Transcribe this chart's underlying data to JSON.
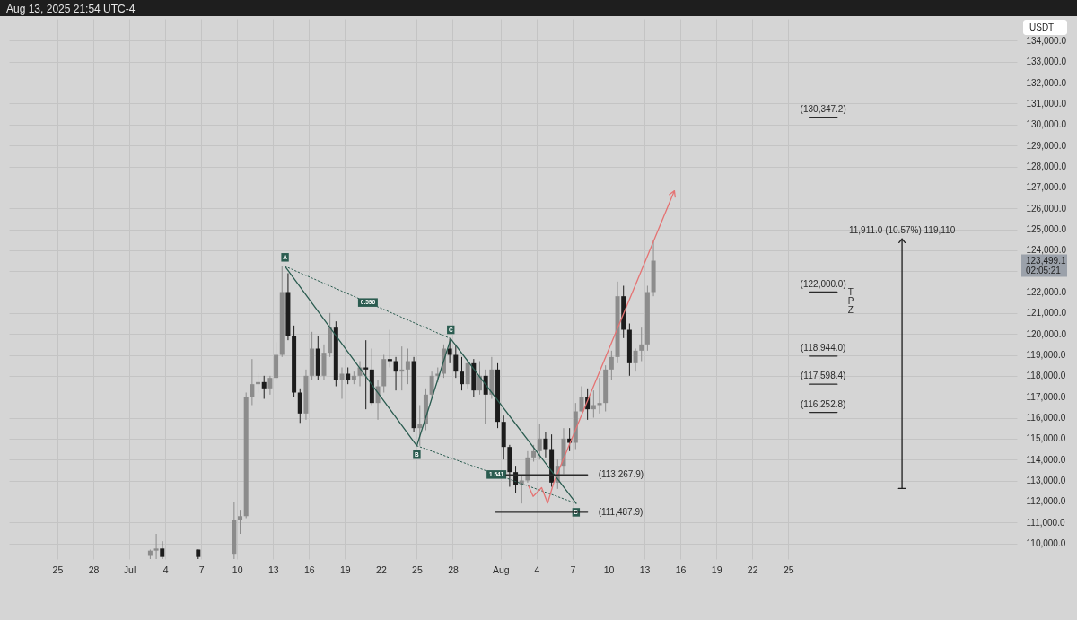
{
  "chart_data": {
    "type": "candlestick",
    "title": "Aug 13, 2025 21:54 UTC-4",
    "ylabel": "USDT",
    "x": [
      "2025-07-02T18:00",
      "2025-07-03T06:00",
      "2025-07-03T18:00",
      "2025-07-06T18:00",
      "2025-07-09T18:00",
      "2025-07-10T06:00",
      "2025-07-10T18:00",
      "2025-07-11T06:00",
      "2025-07-11T18:00",
      "2025-07-12T06:00",
      "2025-07-12T18:00",
      "2025-07-13T06:00",
      "2025-07-13T18:00",
      "2025-07-14T06:00",
      "2025-07-14T18:00",
      "2025-07-15T06:00",
      "2025-07-15T18:00",
      "2025-07-16T06:00",
      "2025-07-16T18:00",
      "2025-07-17T06:00",
      "2025-07-17T18:00",
      "2025-07-18T06:00",
      "2025-07-18T18:00",
      "2025-07-19T06:00",
      "2025-07-19T18:00",
      "2025-07-20T06:00",
      "2025-07-20T18:00",
      "2025-07-21T06:00",
      "2025-07-21T18:00",
      "2025-07-22T06:00",
      "2025-07-22T18:00",
      "2025-07-23T06:00",
      "2025-07-23T18:00",
      "2025-07-24T06:00",
      "2025-07-24T18:00",
      "2025-07-25T06:00",
      "2025-07-25T18:00",
      "2025-07-26T06:00",
      "2025-07-26T18:00",
      "2025-07-27T06:00",
      "2025-07-27T18:00",
      "2025-07-28T06:00",
      "2025-07-28T18:00",
      "2025-07-29T06:00",
      "2025-07-29T18:00",
      "2025-07-30T06:00",
      "2025-07-30T18:00",
      "2025-07-31T06:00",
      "2025-07-31T18:00",
      "2025-08-01T06:00",
      "2025-08-01T18:00",
      "2025-08-02T06:00",
      "2025-08-02T18:00",
      "2025-08-03T06:00",
      "2025-08-03T18:00",
      "2025-08-04T06:00",
      "2025-08-04T18:00",
      "2025-08-05T06:00",
      "2025-08-05T18:00",
      "2025-08-06T06:00",
      "2025-08-06T18:00",
      "2025-08-07T06:00",
      "2025-08-07T18:00",
      "2025-08-08T06:00",
      "2025-08-08T18:00",
      "2025-08-09T06:00",
      "2025-08-09T18:00",
      "2025-08-10T06:00",
      "2025-08-10T18:00",
      "2025-08-11T06:00",
      "2025-08-11T18:00",
      "2025-08-12T06:00",
      "2025-08-12T18:00",
      "2025-08-13T06:00",
      "2025-08-13T18:00"
    ],
    "ohlc": [
      [
        109400,
        109700,
        109250,
        109650
      ],
      [
        109650,
        110450,
        109250,
        109750
      ],
      [
        109750,
        110100,
        109250,
        109350
      ],
      [
        109700,
        109700,
        109250,
        109350
      ],
      [
        109500,
        111950,
        109250,
        111100
      ],
      [
        111100,
        111600,
        110450,
        111300
      ],
      [
        111300,
        117200,
        111200,
        117000
      ],
      [
        117000,
        118800,
        116600,
        117600
      ],
      [
        117600,
        118100,
        117200,
        117700
      ],
      [
        117700,
        118000,
        116900,
        117400
      ],
      [
        117400,
        118000,
        117100,
        117900
      ],
      [
        117900,
        119600,
        117800,
        119000
      ],
      [
        119000,
        123230,
        118900,
        122000
      ],
      [
        122000,
        122900,
        119700,
        119900
      ],
      [
        119900,
        120400,
        117000,
        117200
      ],
      [
        117200,
        117400,
        115750,
        116200
      ],
      [
        116200,
        118300,
        115900,
        118000
      ],
      [
        118000,
        120100,
        117800,
        119300
      ],
      [
        119300,
        119900,
        117800,
        118000
      ],
      [
        118000,
        119500,
        117800,
        119100
      ],
      [
        119100,
        121000,
        118900,
        120300
      ],
      [
        120300,
        120600,
        117500,
        117800
      ],
      [
        117800,
        118400,
        116900,
        118100
      ],
      [
        118100,
        118400,
        117600,
        117800
      ],
      [
        117800,
        118200,
        117600,
        118000
      ],
      [
        118000,
        118700,
        117500,
        118400
      ],
      [
        118400,
        119700,
        116400,
        118300
      ],
      [
        118300,
        119300,
        116600,
        116700
      ],
      [
        116700,
        117800,
        115900,
        117500
      ],
      [
        117500,
        119000,
        117200,
        118800
      ],
      [
        118800,
        120200,
        118400,
        118700
      ],
      [
        118700,
        118900,
        117300,
        118200
      ],
      [
        118200,
        119400,
        117300,
        118300
      ],
      [
        118300,
        119300,
        117600,
        118700
      ],
      [
        118700,
        118900,
        115300,
        115500
      ],
      [
        115500,
        116600,
        114660,
        115700
      ],
      [
        115700,
        117400,
        115400,
        117100
      ],
      [
        117100,
        118200,
        117000,
        118000
      ],
      [
        118000,
        118400,
        117700,
        118100
      ],
      [
        118100,
        119500,
        117900,
        119300
      ],
      [
        119300,
        119770,
        118600,
        119000
      ],
      [
        119000,
        119500,
        117900,
        118200
      ],
      [
        118200,
        118900,
        117300,
        117600
      ],
      [
        117600,
        118800,
        117400,
        118600
      ],
      [
        118600,
        118800,
        117000,
        117300
      ],
      [
        117300,
        118700,
        117100,
        118000
      ],
      [
        118000,
        118300,
        115700,
        117100
      ],
      [
        117100,
        118900,
        116900,
        118300
      ],
      [
        118300,
        118600,
        115500,
        115800
      ],
      [
        115800,
        116100,
        114000,
        114600
      ],
      [
        114600,
        114700,
        112700,
        113400
      ],
      [
        113400,
        113700,
        112400,
        112800
      ],
      [
        112800,
        113200,
        111900,
        113000
      ],
      [
        113000,
        114400,
        112900,
        114100
      ],
      [
        114100,
        114700,
        113900,
        114400
      ],
      [
        114400,
        115700,
        114000,
        115000
      ],
      [
        115000,
        115300,
        114100,
        114500
      ],
      [
        114500,
        115200,
        112700,
        112900
      ],
      [
        112900,
        114000,
        112600,
        113700
      ],
      [
        113700,
        115500,
        113300,
        115000
      ],
      [
        115000,
        115500,
        114400,
        114800
      ],
      [
        114800,
        116700,
        114500,
        116300
      ],
      [
        116300,
        117500,
        116300,
        117000
      ],
      [
        117000,
        117400,
        115900,
        116400
      ],
      [
        116400,
        117300,
        116000,
        116600
      ],
      [
        116600,
        117900,
        116200,
        116700
      ],
      [
        116700,
        118500,
        116300,
        118300
      ],
      [
        118300,
        119200,
        117800,
        118900
      ],
      [
        118900,
        122500,
        118600,
        121800
      ],
      [
        121800,
        122300,
        119800,
        120200
      ],
      [
        120200,
        120500,
        118000,
        118600
      ],
      [
        118600,
        119300,
        118200,
        119200
      ],
      [
        119200,
        120300,
        118700,
        119500
      ],
      [
        119500,
        122300,
        119200,
        122000
      ],
      [
        122000,
        124500,
        121800,
        123499.1
      ]
    ],
    "colors": [
      "#8c8c8c",
      "#8c8c8c",
      "#1c1c1c",
      "#1c1c1c",
      "#8c8c8c",
      "#8c8c8c",
      "#8c8c8c",
      "#8c8c8c",
      "#8c8c8c",
      "#1c1c1c",
      "#8c8c8c",
      "#8c8c8c",
      "#8c8c8c",
      "#1c1c1c",
      "#1c1c1c",
      "#1c1c1c",
      "#8c8c8c",
      "#8c8c8c",
      "#1c1c1c",
      "#8c8c8c",
      "#8c8c8c",
      "#1c1c1c",
      "#8c8c8c",
      "#1c1c1c",
      "#8c8c8c",
      "#8c8c8c",
      "#1c1c1c",
      "#1c1c1c",
      "#8c8c8c",
      "#8c8c8c",
      "#1c1c1c",
      "#1c1c1c",
      "#8c8c8c",
      "#8c8c8c",
      "#1c1c1c",
      "#8c8c8c",
      "#8c8c8c",
      "#8c8c8c",
      "#8c8c8c",
      "#8c8c8c",
      "#1c1c1c",
      "#1c1c1c",
      "#1c1c1c",
      "#8c8c8c",
      "#1c1c1c",
      "#8c8c8c",
      "#1c1c1c",
      "#8c8c8c",
      "#1c1c1c",
      "#1c1c1c",
      "#1c1c1c",
      "#1c1c1c",
      "#8c8c8c",
      "#8c8c8c",
      "#8c8c8c",
      "#8c8c8c",
      "#1c1c1c",
      "#1c1c1c",
      "#8c8c8c",
      "#8c8c8c",
      "#1c1c1c",
      "#8c8c8c",
      "#8c8c8c",
      "#1c1c1c",
      "#8c8c8c",
      "#8c8c8c",
      "#8c8c8c",
      "#8c8c8c",
      "#8c8c8c",
      "#1c1c1c",
      "#1c1c1c",
      "#8c8c8c",
      "#8c8c8c",
      "#8c8c8c",
      "#8c8c8c"
    ],
    "series": [
      {
        "type": "line",
        "x": [
          "2025-07-14T00:00",
          "2025-07-25T00:00",
          "2025-07-27T20:00",
          "2025-08-07T07:00"
        ],
        "values": [
          123230,
          114660,
          119770,
          111910
        ],
        "color": "#2b5c50",
        "value_labels": [
          "A",
          "B",
          "C",
          "D"
        ]
      },
      {
        "type": "line",
        "name": "0.596",
        "x": [
          "2025-07-14T00:00",
          "2025-07-27T20:00"
        ],
        "values": [
          123230,
          119770
        ],
        "color": "#2b5c50",
        "line_style": "dotted"
      },
      {
        "type": "line",
        "name": "1.541",
        "x": [
          "2025-07-25T00:00",
          "2025-08-07T07:00"
        ],
        "values": [
          114660,
          111910
        ],
        "color": "#2b5c50",
        "line_style": "dotted"
      },
      {
        "type": "line",
        "x": [
          "2025-08-03T08:00",
          "2025-08-03T17:00",
          "2025-08-04T10:00",
          "2025-08-04T22:00",
          "2025-08-05T11:00",
          "2025-08-15T12:00",
          "2025-08-15T02:00",
          "2025-08-15T12:00",
          "2025-08-15T13:30"
        ],
        "values": [
          112730,
          112240,
          112660,
          111920,
          112950,
          126840,
          126660,
          126840,
          126540
        ],
        "color": "#e57373"
      },
      {
        "type": "line",
        "x": [
          "2025-09-03T05:00",
          "2025-09-03T19:00",
          "2025-09-03T12:00",
          "2025-09-03T12:00",
          "2025-09-03T06:00",
          "2025-09-03T12:00",
          "2025-09-03T18:00"
        ],
        "values": [
          112620,
          112620,
          112620,
          124540,
          124360,
          124540,
          124360
        ],
        "color": "#1e1e1e"
      },
      {
        "type": "line",
        "x": [
          "2025-08-26T18:00",
          "2025-08-29T02:00"
        ],
        "values": [
          130347.2,
          130347.2
        ],
        "color": "#2a2a2a"
      },
      {
        "type": "line",
        "x": [
          "2025-08-26T18:00",
          "2025-08-29T02:00"
        ],
        "values": [
          122000,
          122000
        ],
        "color": "#2a2a2a"
      },
      {
        "type": "line",
        "x": [
          "2025-08-26T18:00",
          "2025-08-29T02:00"
        ],
        "values": [
          118944,
          118944
        ],
        "color": "#2a2a2a"
      },
      {
        "type": "line",
        "x": [
          "2025-08-26T18:00",
          "2025-08-29T02:00"
        ],
        "values": [
          117598.4,
          117598.4
        ],
        "color": "#2a2a2a"
      },
      {
        "type": "line",
        "x": [
          "2025-08-26T18:00",
          "2025-08-29T02:00"
        ],
        "values": [
          116252.8,
          116252.8
        ],
        "color": "#2a2a2a"
      },
      {
        "type": "line",
        "x": [
          "2025-08-01T11:00",
          "2025-08-08T06:00"
        ],
        "values": [
          113267.9,
          113267.9
        ],
        "color": "#2a2a2a"
      },
      {
        "type": "line",
        "x": [
          "2025-07-31T14:00",
          "2025-08-08T06:00"
        ],
        "values": [
          111487.9,
          111487.9
        ],
        "color": "#2a2a2a"
      }
    ],
    "annotations": [
      "123,499.1",
      "02:05:21",
      {
        "text": "(130,347.2)",
        "x": "2025-08-27T22:00",
        "y": 130347.2
      },
      {
        "text": "(122,000.0)",
        "x": "2025-08-27T22:00",
        "y": 122000
      },
      {
        "text": "(118,944.0)",
        "x": "2025-08-27T22:00",
        "y": 118944
      },
      {
        "text": "(117,598.4)",
        "x": "2025-08-27T22:00",
        "y": 117598.4
      },
      {
        "text": "(116,252.8)",
        "x": "2025-08-27T22:00",
        "y": 116252.8
      },
      {
        "text": "(113,267.9)",
        "x": "2025-08-08T06:00",
        "y": 113267.9
      },
      {
        "text": "(111,487.9)",
        "x": "2025-08-08T06:00",
        "y": 111487.9
      },
      {
        "text": "11,911.0 (10.57%) 119,110",
        "x": "2025-09-03T12:00",
        "y": 124540
      },
      {
        "text": "T\nP\nZ",
        "x": "2025-08-29T02:00",
        "y": 122000
      }
    ],
    "xlim": [
      "2025-06-21T08:00",
      "2025-09-12T17:00"
    ],
    "xticks": [
      {
        "value": "2025-06-25",
        "label": "25"
      },
      {
        "value": "2025-06-28",
        "label": "28"
      },
      {
        "value": "2025-07-01",
        "label": "Jul"
      },
      {
        "value": "2025-07-04",
        "label": "4"
      },
      {
        "value": "2025-07-07",
        "label": "7"
      },
      {
        "value": "2025-07-10",
        "label": "10"
      },
      {
        "value": "2025-07-13",
        "label": "13"
      },
      {
        "value": "2025-07-16",
        "label": "16"
      },
      {
        "value": "2025-07-19",
        "label": "19"
      },
      {
        "value": "2025-07-22",
        "label": "22"
      },
      {
        "value": "2025-07-25",
        "label": "25"
      },
      {
        "value": "2025-07-28",
        "label": "28"
      },
      {
        "value": "2025-08-01",
        "label": "Aug"
      },
      {
        "value": "2025-08-04",
        "label": "4"
      },
      {
        "value": "2025-08-07",
        "label": "7"
      },
      {
        "value": "2025-08-10",
        "label": "10"
      },
      {
        "value": "2025-08-13",
        "label": "13"
      },
      {
        "value": "2025-08-16",
        "label": "16"
      },
      {
        "value": "2025-08-19",
        "label": "19"
      },
      {
        "value": "2025-08-22",
        "label": "22"
      },
      {
        "value": "2025-08-25",
        "label": "25"
      }
    ],
    "ylim": [
      109250,
      135050
    ],
    "yticks": [
      {
        "value": 110000,
        "label": "110,000.0"
      },
      {
        "value": 111000,
        "label": "111,000.0"
      },
      {
        "value": 112000,
        "label": "112,000.0"
      },
      {
        "value": 113000,
        "label": "113,000.0"
      },
      {
        "value": 114000,
        "label": "114,000.0"
      },
      {
        "value": 115000,
        "label": "115,000.0"
      },
      {
        "value": 116000,
        "label": "116,000.0"
      },
      {
        "value": 117000,
        "label": "117,000.0"
      },
      {
        "value": 118000,
        "label": "118,000.0"
      },
      {
        "value": 119000,
        "label": "119,000.0"
      },
      {
        "value": 120000,
        "label": "120,000.0"
      },
      {
        "value": 121000,
        "label": "121,000.0"
      },
      {
        "value": 122000,
        "label": "122,000.0"
      },
      {
        "value": 123000,
        "label": null
      },
      {
        "value": 124000,
        "label": "124,000.0"
      },
      {
        "value": 125000,
        "label": "125,000.0"
      },
      {
        "value": 126000,
        "label": "126,000.0"
      },
      {
        "value": 127000,
        "label": "127,000.0"
      },
      {
        "value": 128000,
        "label": "128,000.0"
      },
      {
        "value": 129000,
        "label": "129,000.0"
      },
      {
        "value": 130000,
        "label": "130,000.0"
      },
      {
        "value": 131000,
        "label": "131,000.0"
      },
      {
        "value": 132000,
        "label": "132,000.0"
      },
      {
        "value": 133000,
        "label": "133,000.0"
      },
      {
        "value": 134000,
        "label": "134,000.0"
      }
    ],
    "grid": true
  }
}
